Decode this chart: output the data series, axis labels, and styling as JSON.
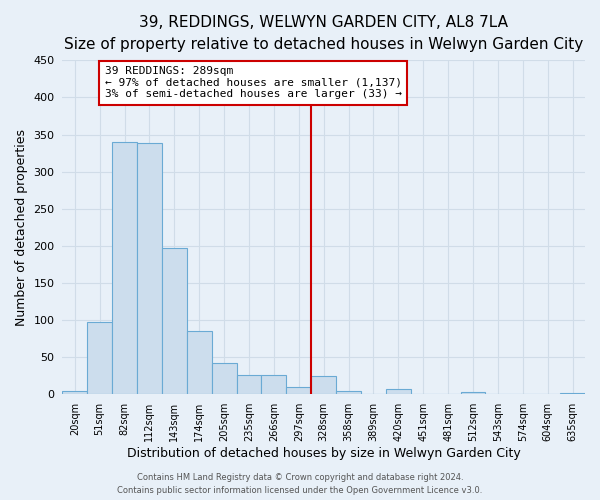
{
  "title": "39, REDDINGS, WELWYN GARDEN CITY, AL8 7LA",
  "subtitle": "Size of property relative to detached houses in Welwyn Garden City",
  "xlabel": "Distribution of detached houses by size in Welwyn Garden City",
  "ylabel": "Number of detached properties",
  "bar_labels": [
    "20sqm",
    "51sqm",
    "82sqm",
    "112sqm",
    "143sqm",
    "174sqm",
    "205sqm",
    "235sqm",
    "266sqm",
    "297sqm",
    "328sqm",
    "358sqm",
    "389sqm",
    "420sqm",
    "451sqm",
    "481sqm",
    "512sqm",
    "543sqm",
    "574sqm",
    "604sqm",
    "635sqm"
  ],
  "bar_values": [
    5,
    97,
    340,
    338,
    197,
    85,
    43,
    26,
    26,
    10,
    25,
    4,
    0,
    7,
    0,
    0,
    3,
    0,
    0,
    0,
    2
  ],
  "bar_color": "#ccdded",
  "bar_edge_color": "#6aaad4",
  "ylim": [
    0,
    450
  ],
  "yticks": [
    0,
    50,
    100,
    150,
    200,
    250,
    300,
    350,
    400,
    450
  ],
  "vline_x": 9.5,
  "vline_color": "#cc0000",
  "annotation_title": "39 REDDINGS: 289sqm",
  "annotation_line1": "← 97% of detached houses are smaller (1,137)",
  "annotation_line2": "3% of semi-detached houses are larger (33) →",
  "annotation_box_color": "#ffffff",
  "annotation_box_edge": "#cc0000",
  "footer1": "Contains HM Land Registry data © Crown copyright and database right 2024.",
  "footer2": "Contains public sector information licensed under the Open Government Licence v3.0.",
  "background_color": "#e8f0f8",
  "grid_color": "#d0dce8",
  "title_fontsize": 11,
  "subtitle_fontsize": 9,
  "xlabel_fontsize": 9,
  "ylabel_fontsize": 9,
  "footer_fontsize": 6,
  "annot_fontsize": 8
}
